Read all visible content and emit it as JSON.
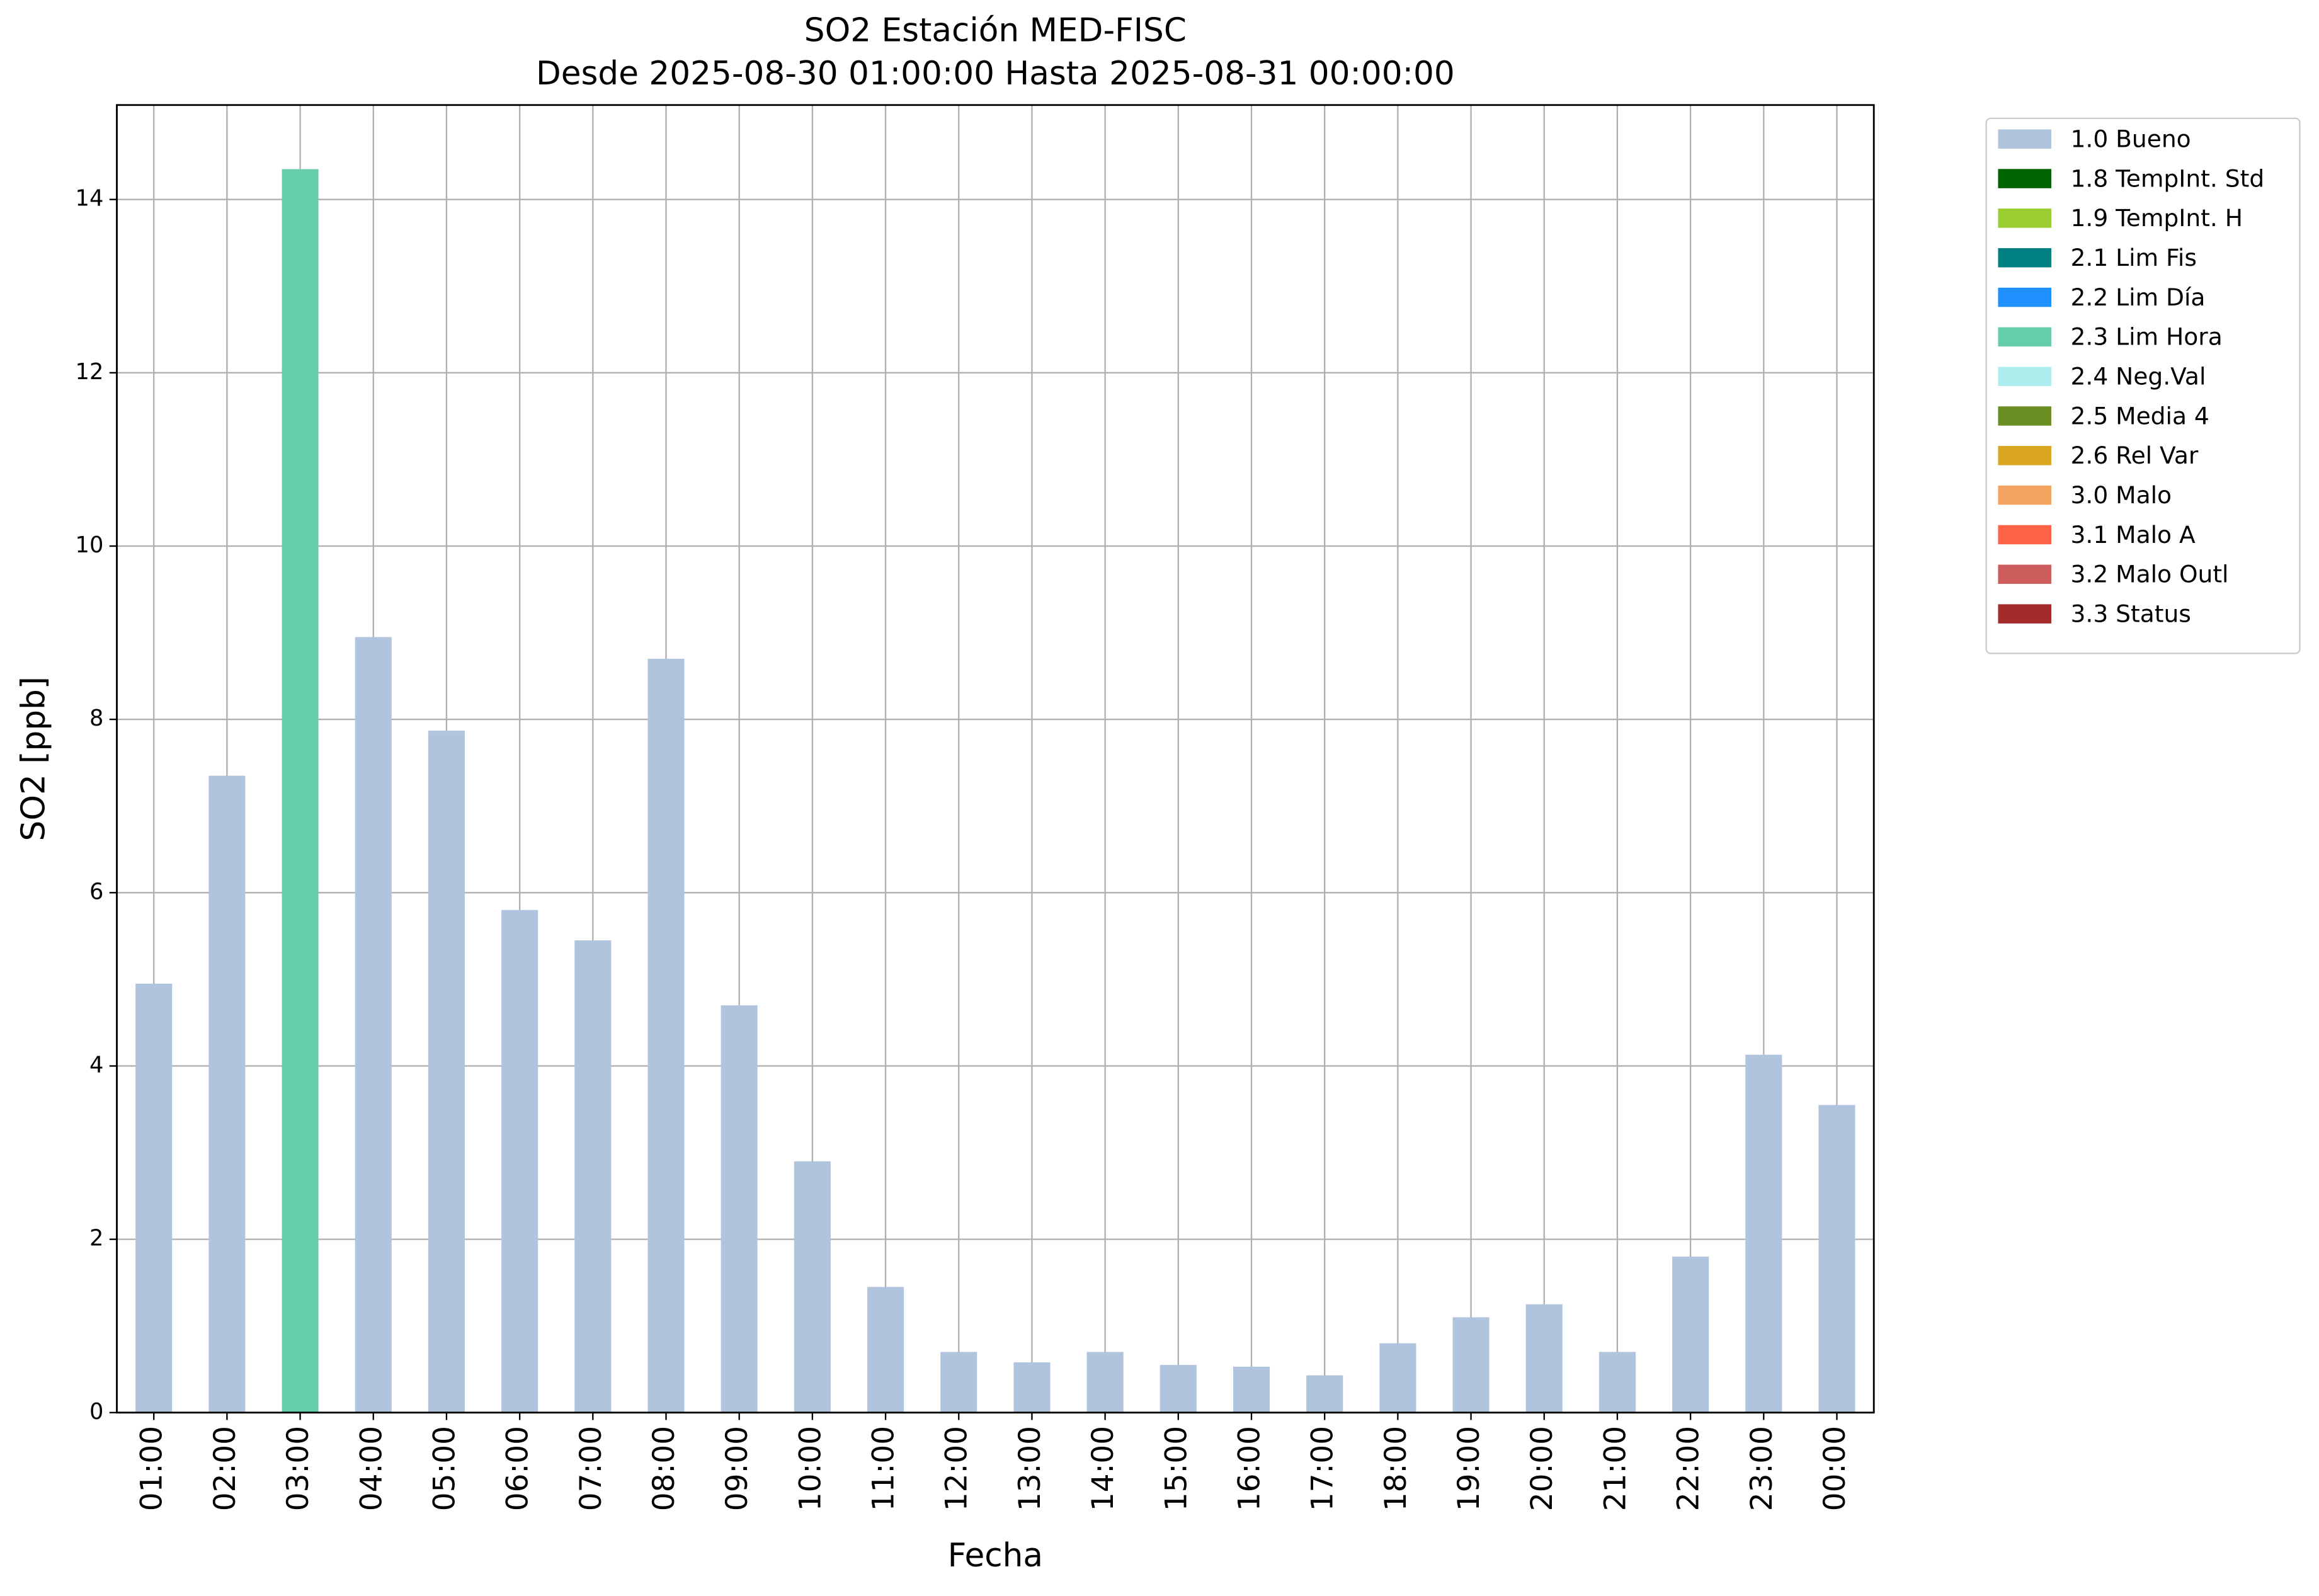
{
  "chart_data": {
    "type": "stacked_bar",
    "title": "SO2 Estación MED-FISC",
    "subtitle": "Desde 2025-08-30 01:00:00 Hasta 2025-08-31 00:00:00",
    "x_label": "Fecha",
    "y_label": "SO2 [ppb]",
    "categories": [
      "01:00",
      "02:00",
      "03:00",
      "04:00",
      "05:00",
      "06:00",
      "07:00",
      "08:00",
      "09:00",
      "10:00",
      "11:00",
      "12:00",
      "13:00",
      "14:00",
      "15:00",
      "16:00",
      "17:00",
      "18:00",
      "19:00",
      "20:00",
      "21:00",
      "22:00",
      "23:00",
      "00:00"
    ],
    "ylim": [
      0,
      15.09
    ],
    "yticks": [
      0,
      2,
      4,
      6,
      8,
      10,
      12,
      14
    ],
    "grid": true,
    "legend": "outside-upper-right",
    "series": [
      {
        "name": "1.0 Bueno",
        "color": "#b0c4de",
        "values": [
          4.95,
          7.35,
          null,
          8.95,
          7.87,
          5.8,
          5.45,
          8.7,
          4.7,
          2.9,
          1.45,
          0.7,
          0.58,
          0.7,
          0.55,
          0.53,
          0.43,
          0.8,
          1.1,
          1.25,
          0.7,
          1.8,
          4.13,
          3.55
        ]
      },
      {
        "name": "1.8 TempInt. Std",
        "color": "#006400",
        "values": [
          null,
          null,
          null,
          null,
          null,
          null,
          null,
          null,
          null,
          null,
          null,
          null,
          null,
          null,
          null,
          null,
          null,
          null,
          null,
          null,
          null,
          null,
          null,
          null
        ]
      },
      {
        "name": "1.9 TempInt. H",
        "color": "#9acd32",
        "values": [
          null,
          null,
          null,
          null,
          null,
          null,
          null,
          null,
          null,
          null,
          null,
          null,
          null,
          null,
          null,
          null,
          null,
          null,
          null,
          null,
          null,
          null,
          null,
          null
        ]
      },
      {
        "name": "2.1 Lim Fis",
        "color": "#008080",
        "values": [
          null,
          null,
          null,
          null,
          null,
          null,
          null,
          null,
          null,
          null,
          null,
          null,
          null,
          null,
          null,
          null,
          null,
          null,
          null,
          null,
          null,
          null,
          null,
          null
        ]
      },
      {
        "name": "2.2 Lim Día",
        "color": "#1e90ff",
        "values": [
          null,
          null,
          null,
          null,
          null,
          null,
          null,
          null,
          null,
          null,
          null,
          null,
          null,
          null,
          null,
          null,
          null,
          null,
          null,
          null,
          null,
          null,
          null,
          null
        ]
      },
      {
        "name": "2.3 Lim Hora",
        "color": "#66cdaa",
        "values": [
          null,
          null,
          14.35,
          null,
          null,
          null,
          null,
          null,
          null,
          null,
          null,
          null,
          null,
          null,
          null,
          null,
          null,
          null,
          null,
          null,
          null,
          null,
          null,
          null
        ]
      },
      {
        "name": "2.4 Neg.Val",
        "color": "#afeeee",
        "values": [
          null,
          null,
          null,
          null,
          null,
          null,
          null,
          null,
          null,
          null,
          null,
          null,
          null,
          null,
          null,
          null,
          null,
          null,
          null,
          null,
          null,
          null,
          null,
          null
        ]
      },
      {
        "name": "2.5 Media 4",
        "color": "#6b8e23",
        "values": [
          null,
          null,
          null,
          null,
          null,
          null,
          null,
          null,
          null,
          null,
          null,
          null,
          null,
          null,
          null,
          null,
          null,
          null,
          null,
          null,
          null,
          null,
          null,
          null
        ]
      },
      {
        "name": "2.6 Rel Var",
        "color": "#daa520",
        "values": [
          null,
          null,
          null,
          null,
          null,
          null,
          null,
          null,
          null,
          null,
          null,
          null,
          null,
          null,
          null,
          null,
          null,
          null,
          null,
          null,
          null,
          null,
          null,
          null
        ]
      },
      {
        "name": "3.0 Malo",
        "color": "#f4a460",
        "values": [
          null,
          null,
          null,
          null,
          null,
          null,
          null,
          null,
          null,
          null,
          null,
          null,
          null,
          null,
          null,
          null,
          null,
          null,
          null,
          null,
          null,
          null,
          null,
          null
        ]
      },
      {
        "name": "3.1 Malo A",
        "color": "#ff6347",
        "values": [
          null,
          null,
          null,
          null,
          null,
          null,
          null,
          null,
          null,
          null,
          null,
          null,
          null,
          null,
          null,
          null,
          null,
          null,
          null,
          null,
          null,
          null,
          null,
          null
        ]
      },
      {
        "name": "3.2 Malo Outl",
        "color": "#cd5c5c",
        "values": [
          null,
          null,
          null,
          null,
          null,
          null,
          null,
          null,
          null,
          null,
          null,
          null,
          null,
          null,
          null,
          null,
          null,
          null,
          null,
          null,
          null,
          null,
          null,
          null
        ]
      },
      {
        "name": "3.3 Status",
        "color": "#a52a2a",
        "values": [
          null,
          null,
          null,
          null,
          null,
          null,
          null,
          null,
          null,
          null,
          null,
          null,
          null,
          null,
          null,
          null,
          null,
          null,
          null,
          null,
          null,
          null,
          null,
          null
        ]
      }
    ]
  }
}
